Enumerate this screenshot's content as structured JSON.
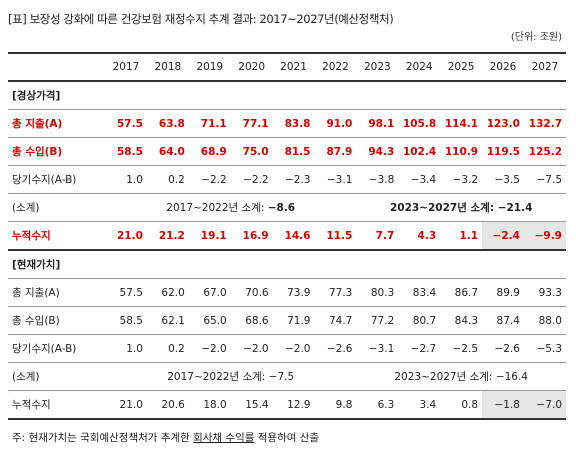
{
  "title": "[표] 보장성 강화에 따른 건강보험 재정수지 추계 결과: 2017~2027년(예산정책처)",
  "unit": "(단위: 조원)",
  "years": [
    "2017",
    "2018",
    "2019",
    "2020",
    "2021",
    "2022",
    "2023",
    "2024",
    "2025",
    "2026",
    "2027"
  ],
  "nominal": {
    "section": "[경상가격]",
    "expense": {
      "label": "총 지출(A)",
      "values": [
        "57.5",
        "63.8",
        "71.1",
        "77.1",
        "83.8",
        "91.0",
        "98.1",
        "105.8",
        "114.1",
        "123.0",
        "132.7"
      ]
    },
    "revenue": {
      "label": "총 수입(B)",
      "values": [
        "58.5",
        "64.0",
        "68.9",
        "75.0",
        "81.5",
        "87.9",
        "94.3",
        "102.4",
        "110.9",
        "119.5",
        "125.2"
      ]
    },
    "balance": {
      "label": "당기수지(A-B)",
      "values": [
        "1.0",
        "0.2",
        "−2.2",
        "−2.2",
        "−2.3",
        "−3.1",
        "−3.8",
        "−3.4",
        "−3.2",
        "−3.5",
        "−7.5"
      ]
    },
    "subtotal": {
      "label": "(소계)",
      "period1": "2017~2022년 소계: ",
      "value1": "−8.6",
      "period2": "2023~2027년 소계: ",
      "value2": "−21.4"
    },
    "cumulative": {
      "label": "누적수지",
      "values": [
        "21.0",
        "21.2",
        "19.1",
        "16.9",
        "14.6",
        "11.5",
        "7.7",
        "4.3",
        "1.1",
        "−2.4",
        "−9.9"
      ]
    }
  },
  "present": {
    "section": "[현재가치]",
    "expense": {
      "label": "총 지출(A)",
      "values": [
        "57.5",
        "62.0",
        "67.0",
        "70.6",
        "73.9",
        "77.3",
        "80.3",
        "83.4",
        "86.7",
        "89.9",
        "93.3"
      ]
    },
    "revenue": {
      "label": "총 수입(B)",
      "values": [
        "58.5",
        "62.1",
        "65.0",
        "68.6",
        "71.9",
        "74.7",
        "77.2",
        "80.7",
        "84.3",
        "87.4",
        "88.0"
      ]
    },
    "balance": {
      "label": "당기수지(A-B)",
      "values": [
        "1.0",
        "0.2",
        "−2.0",
        "−2.0",
        "−2.0",
        "−2.6",
        "−3.1",
        "−2.7",
        "−2.5",
        "−2.6",
        "−5.3"
      ]
    },
    "subtotal": {
      "label": "(소계)",
      "period1": "2017~2022년 소계: ",
      "value1": "−7.5",
      "period2": "2023~2027년 소계: ",
      "value2": "−16.4"
    },
    "cumulative": {
      "label": "누적수지",
      "values": [
        "21.0",
        "20.6",
        "18.0",
        "15.4",
        "12.9",
        "9.8",
        "6.3",
        "3.4",
        "0.8",
        "−1.8",
        "−7.0"
      ]
    }
  },
  "note": {
    "prefix": "주: 현재가치는 국회예산정책처가 추계한 ",
    "underlined": "회사채 수익률",
    "suffix": " 적용하여 산출"
  }
}
